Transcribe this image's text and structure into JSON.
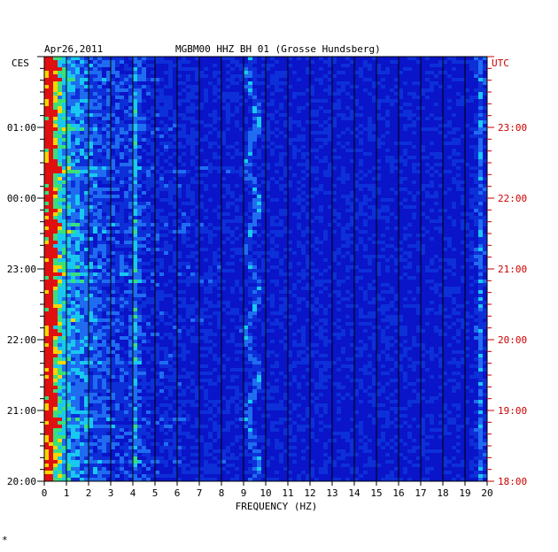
{
  "header": {
    "date": "Apr26,2011",
    "station": "MGBM00 HHZ BH 01 (Grosse Hundsberg)"
  },
  "chart_data": {
    "type": "heatmap",
    "xlabel": "FREQUENCY (HZ)",
    "left_zone": "CES",
    "right_zone": "UTC",
    "xlim": [
      0,
      20
    ],
    "x_ticks": [
      "0",
      "1",
      "2",
      "3",
      "4",
      "5",
      "6",
      "7",
      "8",
      "9",
      "10",
      "11",
      "12",
      "13",
      "14",
      "15",
      "16",
      "17",
      "18",
      "19",
      "20"
    ],
    "left_time_ticks": [
      {
        "label": "01:00",
        "hours_from_bottom": 5
      },
      {
        "label": "00:00",
        "hours_from_bottom": 4
      },
      {
        "label": "23:00",
        "hours_from_bottom": 3
      },
      {
        "label": "22:00",
        "hours_from_bottom": 2
      },
      {
        "label": "21:00",
        "hours_from_bottom": 1
      },
      {
        "label": "20:00",
        "hours_from_bottom": 0
      }
    ],
    "right_time_ticks": [
      {
        "label": "23:00",
        "hours_from_bottom": 5
      },
      {
        "label": "22:00",
        "hours_from_bottom": 4
      },
      {
        "label": "21:00",
        "hours_from_bottom": 3
      },
      {
        "label": "20:00",
        "hours_from_bottom": 2
      },
      {
        "label": "19:00",
        "hours_from_bottom": 1
      },
      {
        "label": "18:00",
        "hours_from_bottom": 0
      }
    ],
    "time_span_hours": 6,
    "grid": true,
    "prominent_bands_hz": [
      0.3,
      4.1,
      9.4,
      19.7
    ],
    "colors": {
      "background": "#0a14c8",
      "grid": "#000000",
      "left_labels": "#000000",
      "right_labels": "#cc0000"
    }
  },
  "footer": {
    "mark": "*"
  }
}
